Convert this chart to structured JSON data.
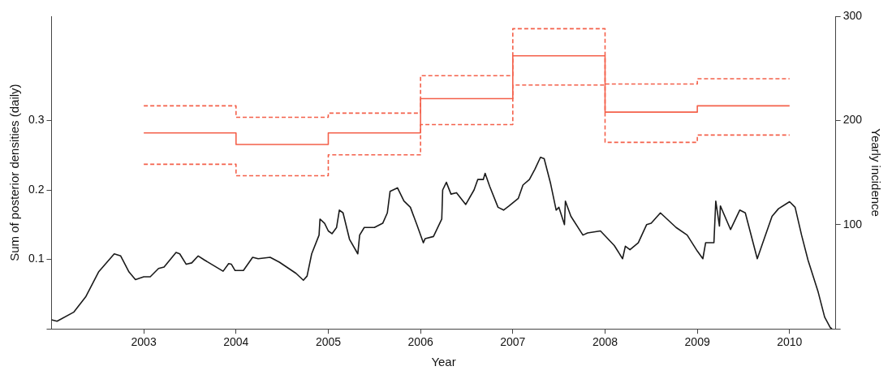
{
  "chart_data": {
    "type": "line",
    "xlabel": "Year",
    "ylabel": "Sum of posterior densities (daily)",
    "y2label": "Yearly incidence",
    "xlim": [
      2002,
      2010.5
    ],
    "xticks": [
      2003,
      2004,
      2005,
      2006,
      2007,
      2008,
      2009,
      2010
    ],
    "ylim": [
      0,
      0.45
    ],
    "yticks": [
      {
        "value": 0,
        "label": null
      },
      0.1,
      0.2,
      0.3
    ],
    "y2lim": [
      0,
      300
    ],
    "y2ticks": [
      {
        "value": 0,
        "label": null
      },
      100,
      200,
      300
    ],
    "series": [
      {
        "type": "line",
        "color": "#1a1a1a",
        "line_style": "solid",
        "x": [
          2002.0,
          2002.06,
          2002.24,
          2002.37,
          2002.51,
          2002.68,
          2002.75,
          2002.84,
          2002.91,
          2003.0,
          2003.07,
          2003.16,
          2003.22,
          2003.35,
          2003.39,
          2003.46,
          2003.52,
          2003.59,
          2003.66,
          2003.86,
          2003.92,
          2003.95,
          2003.99,
          2004.08,
          2004.18,
          2004.24,
          2004.37,
          2004.47,
          2004.65,
          2004.73,
          2004.77,
          2004.82,
          2004.9,
          2004.91,
          2004.96,
          2005.0,
          2005.04,
          2005.09,
          2005.12,
          2005.16,
          2005.23,
          2005.32,
          2005.34,
          2005.39,
          2005.5,
          2005.59,
          2005.64,
          2005.67,
          2005.75,
          2005.82,
          2005.89,
          2005.96,
          2006.03,
          2006.05,
          2006.14,
          2006.23,
          2006.24,
          2006.28,
          2006.33,
          2006.39,
          2006.49,
          2006.58,
          2006.62,
          2006.68,
          2006.7,
          2006.75,
          2006.84,
          2006.9,
          2006.96,
          2007.06,
          2007.11,
          2007.18,
          2007.24,
          2007.3,
          2007.34,
          2007.41,
          2007.47,
          2007.5,
          2007.56,
          2007.57,
          2007.63,
          2007.76,
          2007.81,
          2007.95,
          2008.1,
          2008.19,
          2008.22,
          2008.27,
          2008.36,
          2008.45,
          2008.5,
          2008.6,
          2008.77,
          2008.89,
          2009.0,
          2009.06,
          2009.09,
          2009.18,
          2009.2,
          2009.24,
          2009.25,
          2009.36,
          2009.46,
          2009.52,
          2009.65,
          2009.71,
          2009.81,
          2009.88,
          2010.0,
          2010.06,
          2010.13,
          2010.2,
          2010.31,
          2010.38,
          2010.44,
          2010.46
        ],
        "values": [
          0.013,
          0.011,
          0.024,
          0.046,
          0.082,
          0.108,
          0.105,
          0.082,
          0.071,
          0.075,
          0.075,
          0.087,
          0.089,
          0.11,
          0.108,
          0.093,
          0.095,
          0.105,
          0.099,
          0.083,
          0.094,
          0.093,
          0.084,
          0.084,
          0.103,
          0.101,
          0.103,
          0.096,
          0.08,
          0.07,
          0.076,
          0.108,
          0.135,
          0.158,
          0.152,
          0.141,
          0.137,
          0.146,
          0.171,
          0.167,
          0.129,
          0.108,
          0.135,
          0.146,
          0.146,
          0.152,
          0.167,
          0.198,
          0.203,
          0.184,
          0.175,
          0.15,
          0.124,
          0.13,
          0.133,
          0.158,
          0.2,
          0.211,
          0.194,
          0.196,
          0.179,
          0.2,
          0.215,
          0.215,
          0.224,
          0.205,
          0.175,
          0.171,
          0.177,
          0.188,
          0.207,
          0.215,
          0.23,
          0.247,
          0.245,
          0.209,
          0.171,
          0.175,
          0.15,
          0.184,
          0.162,
          0.135,
          0.138,
          0.141,
          0.12,
          0.101,
          0.119,
          0.114,
          0.124,
          0.15,
          0.152,
          0.167,
          0.146,
          0.135,
          0.112,
          0.101,
          0.124,
          0.124,
          0.184,
          0.148,
          0.177,
          0.143,
          0.171,
          0.167,
          0.101,
          0.124,
          0.162,
          0.173,
          0.183,
          0.175,
          0.135,
          0.099,
          0.053,
          0.017,
          0.002,
          0
        ]
      },
      {
        "type": "step",
        "axis": "y2",
        "color": "#f4604a",
        "line_style": "solid",
        "x": [
          2003,
          2004,
          2005,
          2006,
          2007,
          2008,
          2009,
          2010
        ],
        "values": [
          188,
          177,
          188,
          221,
          262,
          208,
          214,
          214
        ]
      },
      {
        "type": "step",
        "axis": "y2",
        "color": "#f4604a",
        "line_style": "dashed",
        "x": [
          2003,
          2004,
          2005,
          2006,
          2007,
          2008,
          2009,
          2010
        ],
        "values": [
          214,
          203,
          207,
          243,
          288,
          235,
          240,
          240
        ]
      },
      {
        "type": "step",
        "axis": "y2",
        "color": "#f4604a",
        "line_style": "dashed",
        "x": [
          2003,
          2004,
          2005,
          2006,
          2007,
          2008,
          2009,
          2010
        ],
        "values": [
          158,
          147,
          167,
          196,
          234,
          179,
          186,
          186
        ]
      }
    ]
  }
}
